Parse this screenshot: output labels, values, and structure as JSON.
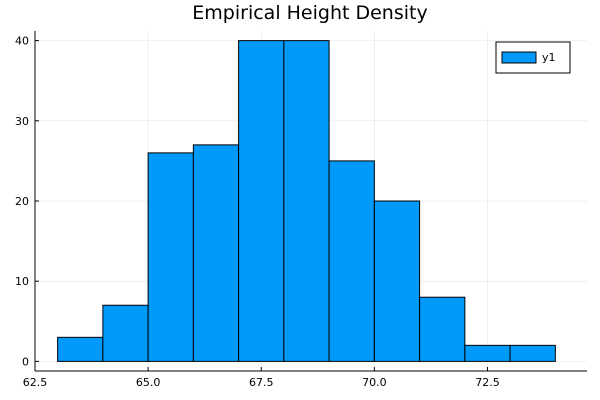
{
  "chart_data": {
    "type": "histogram",
    "title": "Empirical Height Density",
    "xlabel": "",
    "ylabel": "",
    "bin_width": 1,
    "bins": [
      {
        "start": 63,
        "end": 64,
        "count": 3
      },
      {
        "start": 64,
        "end": 65,
        "count": 7
      },
      {
        "start": 65,
        "end": 66,
        "count": 26
      },
      {
        "start": 66,
        "end": 67,
        "count": 27
      },
      {
        "start": 67,
        "end": 68,
        "count": 40
      },
      {
        "start": 68,
        "end": 69,
        "count": 40
      },
      {
        "start": 69,
        "end": 70,
        "count": 25
      },
      {
        "start": 70,
        "end": 71,
        "count": 20
      },
      {
        "start": 71,
        "end": 72,
        "count": 8
      },
      {
        "start": 72,
        "end": 73,
        "count": 2
      },
      {
        "start": 73,
        "end": 74,
        "count": 2
      }
    ],
    "series": [
      {
        "name": "y1",
        "color": "#009AFA"
      }
    ],
    "xlim": [
      62.5,
      74.7
    ],
    "ylim": [
      -1.2,
      41.2
    ],
    "x_ticks": [
      62.5,
      65.0,
      67.5,
      70.0,
      72.5
    ],
    "x_tick_labels": [
      "62.5",
      "65.0",
      "67.5",
      "70.0",
      "72.5"
    ],
    "y_ticks": [
      0,
      10,
      20,
      30,
      40
    ],
    "y_tick_labels": [
      "0",
      "10",
      "20",
      "30",
      "40"
    ],
    "grid": true,
    "legend_position": "top-right",
    "bar_color": "#009AFA"
  }
}
